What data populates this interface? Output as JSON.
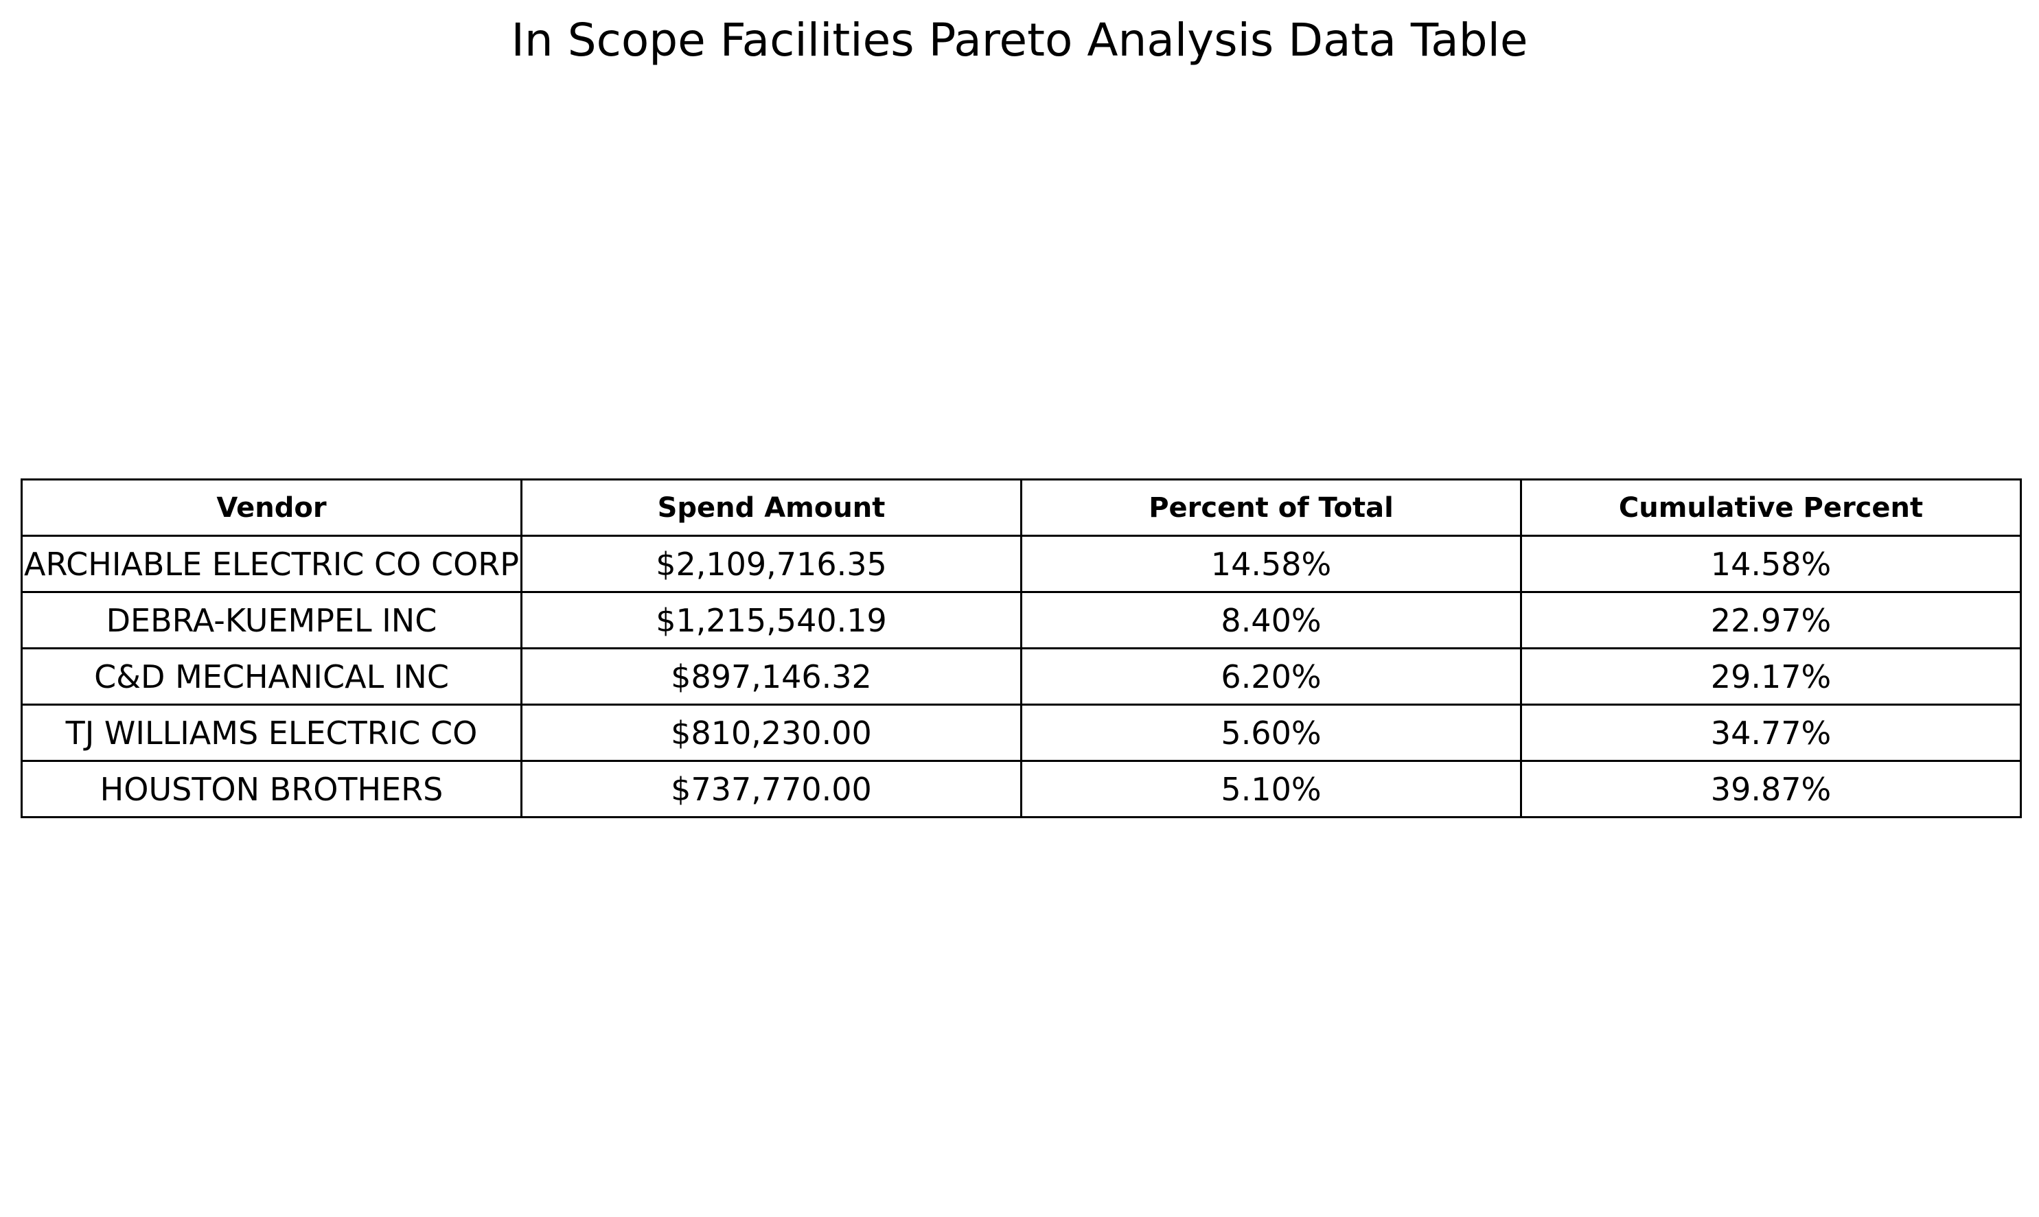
{
  "chart_data": {
    "type": "table",
    "title": "In Scope Facilities Pareto Analysis Data Table",
    "columns": [
      "Vendor",
      "Spend Amount",
      "Percent of Total",
      "Cumulative Percent"
    ],
    "rows": [
      [
        "ARCHIABLE ELECTRIC CO CORP",
        "$2,109,716.35",
        "14.58%",
        "14.58%"
      ],
      [
        "DEBRA-KUEMPEL INC",
        "$1,215,540.19",
        "8.40%",
        "22.97%"
      ],
      [
        "C&D MECHANICAL INC",
        "$897,146.32",
        "6.20%",
        "29.17%"
      ],
      [
        "TJ WILLIAMS ELECTRIC CO",
        "$810,230.00",
        "5.60%",
        "34.77%"
      ],
      [
        "HOUSTON BROTHERS",
        "$737,770.00",
        "5.10%",
        "39.87%"
      ]
    ]
  }
}
